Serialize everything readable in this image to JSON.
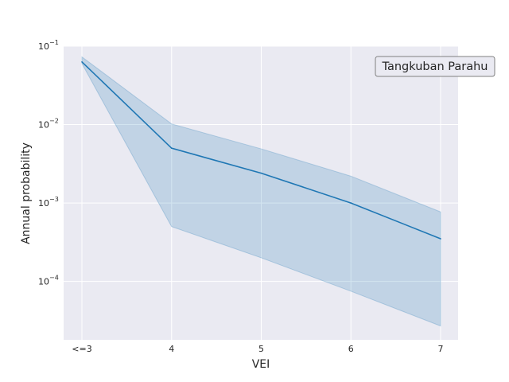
{
  "chart_data": {
    "type": "line",
    "xlabel": "VEI",
    "ylabel": "Annual probability",
    "categories": [
      "<=3",
      "4",
      "5",
      "6",
      "7"
    ],
    "yscale": "log",
    "ylim": [
      1.8e-05,
      0.1
    ],
    "y_ticks": [
      {
        "value": 0.1,
        "base": "10",
        "exp": "−1"
      },
      {
        "value": 0.01,
        "base": "10",
        "exp": "−2"
      },
      {
        "value": 0.001,
        "base": "10",
        "exp": "−3"
      },
      {
        "value": 0.0001,
        "base": "10",
        "exp": "−4"
      }
    ],
    "series": [
      {
        "values": [
          0.063,
          0.005,
          0.0024,
          0.001,
          0.00035
        ],
        "lower": [
          0.06,
          0.0005,
          0.0002,
          7.5e-05,
          2.7e-05
        ],
        "upper": [
          0.073,
          0.0102,
          0.0049,
          0.0022,
          0.00077
        ],
        "color": "#1f77b4",
        "band_color": "#1f77b4"
      }
    ],
    "annotation": "Tangkuban Parahu",
    "grid": true,
    "background": "#eaeaf2"
  }
}
